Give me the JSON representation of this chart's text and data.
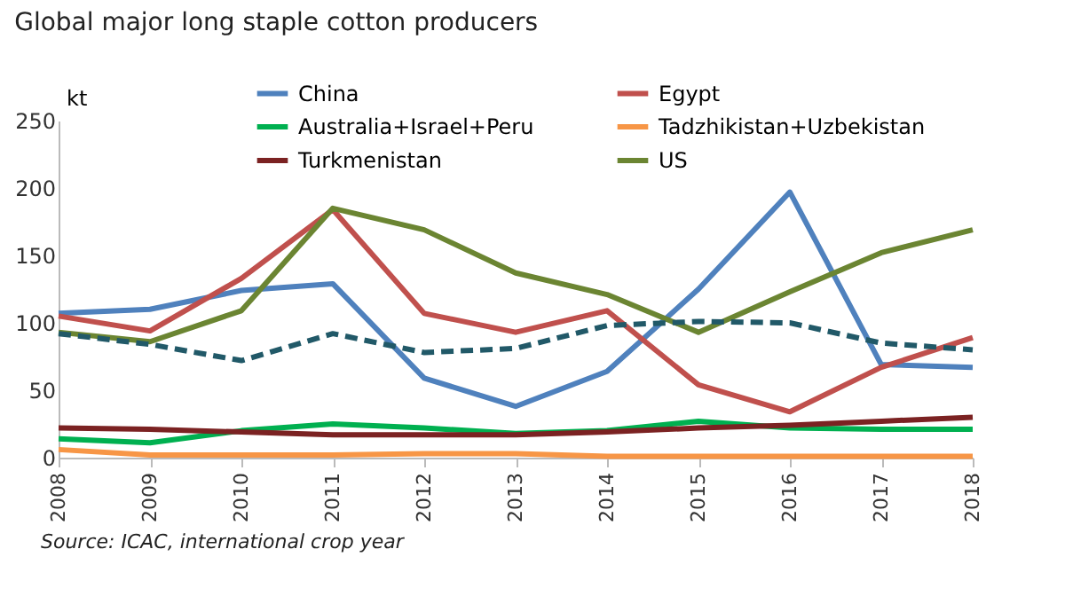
{
  "chart_data": {
    "type": "line",
    "title": "Global major long staple cotton producers",
    "ylabel": "kt",
    "categories": [
      "2008",
      "2009",
      "2010",
      "2011",
      "2012",
      "2013",
      "2014",
      "2015",
      "2016",
      "2017",
      "2018"
    ],
    "series": [
      {
        "name": "China",
        "color": "#4f81bd",
        "values": [
          107,
          110,
          124,
          129,
          59,
          38,
          64,
          125,
          197,
          69,
          67
        ]
      },
      {
        "name": "Egypt",
        "color": "#c0504d",
        "values": [
          105,
          94,
          133,
          184,
          107,
          93,
          109,
          54,
          34,
          67,
          89
        ]
      },
      {
        "name": "Australia+Israel+Peru",
        "color": "#00b050",
        "values": [
          14,
          11,
          20,
          25,
          22,
          18,
          20,
          27,
          22,
          21,
          21
        ]
      },
      {
        "name": "Tadzhikistan+Uzbekistan",
        "color": "#f79646",
        "values": [
          6,
          2,
          2,
          2,
          3,
          3,
          1,
          1,
          1,
          1,
          1
        ]
      },
      {
        "name": "Turkmenistan",
        "color": "#7b2222",
        "values": [
          22,
          21,
          19,
          17,
          17,
          17,
          19,
          22,
          24,
          27,
          30
        ]
      },
      {
        "name": "US",
        "color": "#6b8532",
        "values": [
          93,
          86,
          109,
          185,
          169,
          137,
          121,
          93,
          123,
          152,
          169
        ]
      },
      {
        "color": "#215968",
        "line_style": "dashed",
        "values": [
          92,
          84,
          72,
          92,
          78,
          81,
          98,
          101,
          100,
          85,
          80
        ]
      }
    ],
    "ylim": [
      0,
      250
    ],
    "yticks": [
      0,
      50,
      100,
      150,
      200,
      250
    ],
    "grid": false,
    "legend": "top",
    "marker": "none",
    "annotations": [
      "Source: ICAC, international crop year"
    ]
  }
}
